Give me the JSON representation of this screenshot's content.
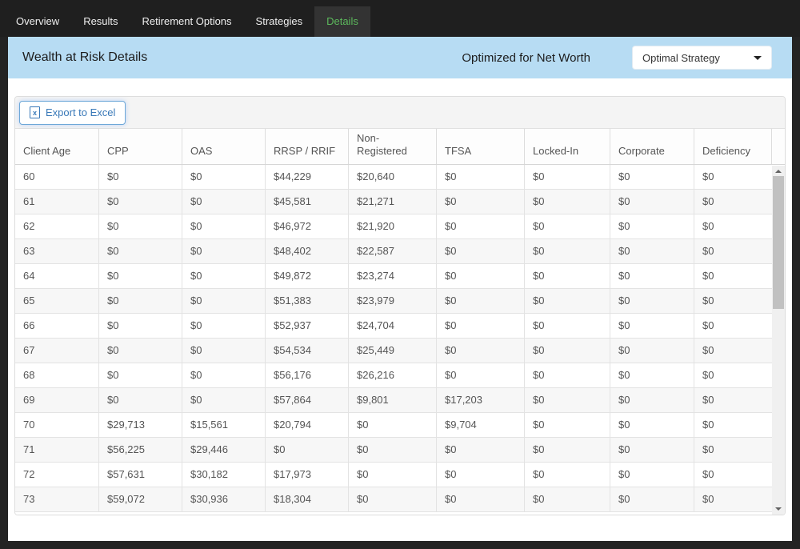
{
  "nav": {
    "tabs": [
      {
        "label": "Overview",
        "active": false
      },
      {
        "label": "Results",
        "active": false
      },
      {
        "label": "Retirement Options",
        "active": false
      },
      {
        "label": "Strategies",
        "active": false
      },
      {
        "label": "Details",
        "active": true
      }
    ]
  },
  "header": {
    "title": "Wealth at Risk Details",
    "optimized_label": "Optimized for Net Worth",
    "strategy_dropdown_value": "Optimal Strategy"
  },
  "toolbar": {
    "export_label": "Export to Excel",
    "excel_icon_glyph": "x"
  },
  "table": {
    "columns": [
      "Client Age",
      "CPP",
      "OAS",
      "RRSP / RRIF",
      "Non-Registered",
      "TFSA",
      "Locked-In",
      "Corporate",
      "Deficiency"
    ],
    "rows": [
      [
        "60",
        "$0",
        "$0",
        "$44,229",
        "$20,640",
        "$0",
        "$0",
        "$0",
        "$0"
      ],
      [
        "61",
        "$0",
        "$0",
        "$45,581",
        "$21,271",
        "$0",
        "$0",
        "$0",
        "$0"
      ],
      [
        "62",
        "$0",
        "$0",
        "$46,972",
        "$21,920",
        "$0",
        "$0",
        "$0",
        "$0"
      ],
      [
        "63",
        "$0",
        "$0",
        "$48,402",
        "$22,587",
        "$0",
        "$0",
        "$0",
        "$0"
      ],
      [
        "64",
        "$0",
        "$0",
        "$49,872",
        "$23,274",
        "$0",
        "$0",
        "$0",
        "$0"
      ],
      [
        "65",
        "$0",
        "$0",
        "$51,383",
        "$23,979",
        "$0",
        "$0",
        "$0",
        "$0"
      ],
      [
        "66",
        "$0",
        "$0",
        "$52,937",
        "$24,704",
        "$0",
        "$0",
        "$0",
        "$0"
      ],
      [
        "67",
        "$0",
        "$0",
        "$54,534",
        "$25,449",
        "$0",
        "$0",
        "$0",
        "$0"
      ],
      [
        "68",
        "$0",
        "$0",
        "$56,176",
        "$26,216",
        "$0",
        "$0",
        "$0",
        "$0"
      ],
      [
        "69",
        "$0",
        "$0",
        "$57,864",
        "$9,801",
        "$17,203",
        "$0",
        "$0",
        "$0"
      ],
      [
        "70",
        "$29,713",
        "$15,561",
        "$20,794",
        "$0",
        "$9,704",
        "$0",
        "$0",
        "$0"
      ],
      [
        "71",
        "$56,225",
        "$29,446",
        "$0",
        "$0",
        "$0",
        "$0",
        "$0",
        "$0"
      ],
      [
        "72",
        "$57,631",
        "$30,182",
        "$17,973",
        "$0",
        "$0",
        "$0",
        "$0",
        "$0"
      ],
      [
        "73",
        "$59,072",
        "$30,936",
        "$18,304",
        "$0",
        "$0",
        "$0",
        "$0",
        "$0"
      ]
    ]
  },
  "colors": {
    "active_tab_text": "#5cb85c",
    "nav_background": "#1f1f1f",
    "header_background": "#b7dcf3",
    "button_accent": "#3878b8"
  }
}
